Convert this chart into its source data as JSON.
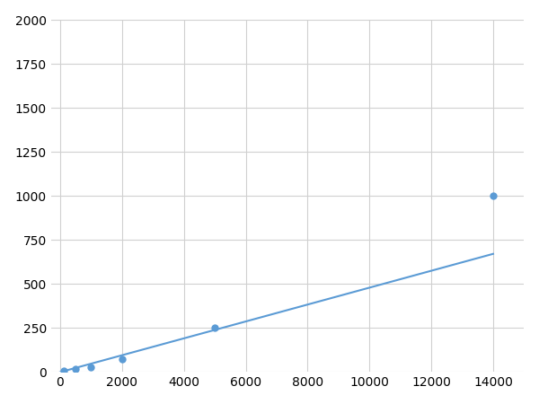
{
  "x": [
    0,
    125,
    500,
    1000,
    2000,
    5000,
    14000
  ],
  "y": [
    0,
    10,
    20,
    28,
    75,
    250,
    1000
  ],
  "marker_x": [
    125,
    500,
    1000,
    2000,
    5000,
    14000
  ],
  "marker_y": [
    10,
    20,
    28,
    75,
    250,
    1000
  ],
  "line_color": "#5b9bd5",
  "marker_color": "#5b9bd5",
  "marker_size": 6,
  "line_width": 1.5,
  "xlim": [
    -300,
    15000
  ],
  "ylim": [
    0,
    2000
  ],
  "xticks": [
    0,
    2000,
    4000,
    6000,
    8000,
    10000,
    12000,
    14000
  ],
  "yticks": [
    0,
    250,
    500,
    750,
    1000,
    1250,
    1500,
    1750,
    2000
  ],
  "grid_color": "#d0d0d0",
  "background_color": "#ffffff",
  "tick_fontsize": 10
}
